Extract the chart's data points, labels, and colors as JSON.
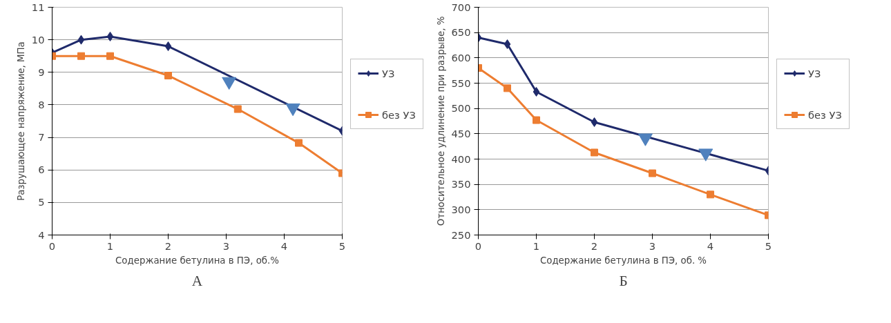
{
  "chart_data": [
    {
      "type": "line",
      "xlabel": "Содержание бетулина в ПЭ, об.%",
      "ylabel": "Разрушающее напряжение, МПа",
      "annotations": [
        "А"
      ],
      "xlim": [
        0,
        5
      ],
      "xticks": [
        0,
        1,
        2,
        3,
        4,
        5
      ],
      "ylim": [
        4,
        11
      ],
      "yticks": [
        4,
        5,
        6,
        7,
        8,
        9,
        10,
        11
      ],
      "grid": "y",
      "legend": "right",
      "series": [
        {
          "name": "УЗ",
          "color": "#1f2a6b",
          "marker": "diamond",
          "x": [
            0,
            0.5,
            1,
            2,
            5
          ],
          "values": [
            9.6,
            10.0,
            10.1,
            9.8,
            7.2
          ]
        },
        {
          "name": "без УЗ",
          "color": "#ed7d31",
          "marker": "square",
          "x": [
            0,
            0.5,
            1,
            2,
            3.2,
            4.25,
            5
          ],
          "values": [
            9.5,
            9.5,
            9.5,
            8.9,
            7.87,
            6.83,
            5.9
          ]
        },
        {
          "type": "scatter",
          "color": "#4f81bd",
          "marker": "triangle",
          "x": [
            3.05,
            4.15
          ],
          "values": [
            8.72,
            7.91
          ]
        }
      ]
    },
    {
      "type": "line",
      "xlabel": "Содержание бетулина в ПЭ, об. %",
      "ylabel": "Относительное удлинение при разрыве, %",
      "annotations": [
        "Б"
      ],
      "xlim": [
        0,
        5
      ],
      "xticks": [
        0,
        1,
        2,
        3,
        4,
        5
      ],
      "ylim": [
        250,
        700
      ],
      "yticks": [
        250,
        300,
        350,
        400,
        450,
        500,
        550,
        600,
        650,
        700
      ],
      "grid": "y",
      "legend": "right",
      "series": [
        {
          "name": "УЗ",
          "color": "#1f2a6b",
          "marker": "diamond",
          "x": [
            0,
            0.5,
            1,
            2,
            5
          ],
          "values": [
            640,
            627,
            533,
            473,
            377
          ]
        },
        {
          "name": "без УЗ",
          "color": "#ed7d31",
          "marker": "square",
          "x": [
            0,
            0.5,
            1,
            2,
            3,
            4,
            5
          ],
          "values": [
            580,
            540,
            477,
            413,
            372,
            330,
            289
          ]
        },
        {
          "type": "scatter",
          "color": "#4f81bd",
          "marker": "triangle",
          "x": [
            2.88,
            3.92
          ],
          "values": [
            442,
            412
          ]
        }
      ]
    }
  ]
}
